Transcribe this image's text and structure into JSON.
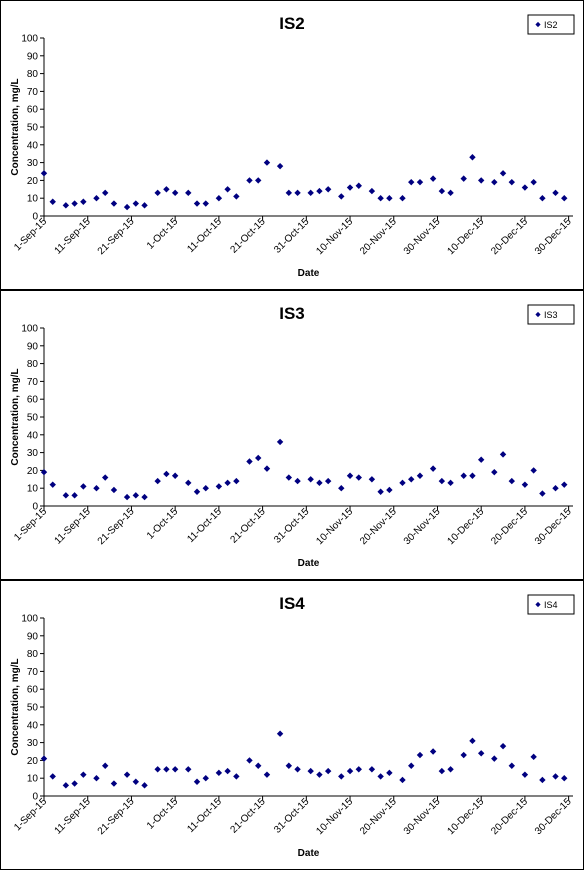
{
  "chart_data": [
    {
      "type": "scatter",
      "title": "IS2",
      "xlabel": "Date",
      "ylabel": "Concentration, mg/L",
      "ylim": [
        0,
        100
      ],
      "yticks": [
        0,
        10,
        20,
        30,
        40,
        50,
        60,
        70,
        80,
        90,
        100
      ],
      "xlim": [
        "2015-09-01",
        "2015-12-31"
      ],
      "xticks": [
        "1-Sep-15",
        "11-Sep-15",
        "21-Sep-15",
        "1-Oct-15",
        "11-Oct-15",
        "21-Oct-15",
        "31-Oct-15",
        "10-Nov-15",
        "20-Nov-15",
        "30-Nov-15",
        "10-Dec-15",
        "20-Dec-15",
        "30-Dec-15"
      ],
      "legend": "top-right",
      "grid": false,
      "marker_color": "#000080",
      "series": [
        {
          "name": "IS2",
          "x": [
            "2015-09-01",
            "2015-09-03",
            "2015-09-06",
            "2015-09-08",
            "2015-09-10",
            "2015-09-13",
            "2015-09-15",
            "2015-09-17",
            "2015-09-20",
            "2015-09-22",
            "2015-09-24",
            "2015-09-27",
            "2015-09-29",
            "2015-10-01",
            "2015-10-04",
            "2015-10-06",
            "2015-10-08",
            "2015-10-11",
            "2015-10-13",
            "2015-10-15",
            "2015-10-18",
            "2015-10-20",
            "2015-10-22",
            "2015-10-25",
            "2015-10-27",
            "2015-10-29",
            "2015-11-01",
            "2015-11-03",
            "2015-11-05",
            "2015-11-08",
            "2015-11-10",
            "2015-11-12",
            "2015-11-15",
            "2015-11-17",
            "2015-11-19",
            "2015-11-22",
            "2015-11-24",
            "2015-11-26",
            "2015-11-29",
            "2015-12-01",
            "2015-12-03",
            "2015-12-06",
            "2015-12-08",
            "2015-12-10",
            "2015-12-13",
            "2015-12-15",
            "2015-12-17",
            "2015-12-20",
            "2015-12-22",
            "2015-12-24",
            "2015-12-27",
            "2015-12-29"
          ],
          "y": [
            24,
            8,
            6,
            7,
            8,
            10,
            13,
            7,
            5,
            7,
            6,
            13,
            15,
            13,
            13,
            7,
            7,
            10,
            15,
            11,
            20,
            20,
            30,
            28,
            13,
            13,
            13,
            14,
            15,
            11,
            16,
            17,
            14,
            10,
            10,
            10,
            19,
            19,
            21,
            14,
            13,
            21,
            33,
            20,
            19,
            24,
            19,
            16,
            19,
            10,
            13,
            10
          ]
        }
      ]
    },
    {
      "type": "scatter",
      "title": "IS3",
      "xlabel": "Date",
      "ylabel": "Concentration, mg/L",
      "ylim": [
        0,
        100
      ],
      "yticks": [
        0,
        10,
        20,
        30,
        40,
        50,
        60,
        70,
        80,
        90,
        100
      ],
      "xlim": [
        "2015-09-01",
        "2015-12-31"
      ],
      "xticks": [
        "1-Sep-15",
        "11-Sep-15",
        "21-Sep-15",
        "1-Oct-15",
        "11-Oct-15",
        "21-Oct-15",
        "31-Oct-15",
        "10-Nov-15",
        "20-Nov-15",
        "30-Nov-15",
        "10-Dec-15",
        "20-Dec-15",
        "30-Dec-15"
      ],
      "legend": "top-right",
      "grid": false,
      "marker_color": "#000080",
      "series": [
        {
          "name": "IS3",
          "x": [
            "2015-09-01",
            "2015-09-03",
            "2015-09-06",
            "2015-09-08",
            "2015-09-10",
            "2015-09-13",
            "2015-09-15",
            "2015-09-17",
            "2015-09-20",
            "2015-09-22",
            "2015-09-24",
            "2015-09-27",
            "2015-09-29",
            "2015-10-01",
            "2015-10-04",
            "2015-10-06",
            "2015-10-08",
            "2015-10-11",
            "2015-10-13",
            "2015-10-15",
            "2015-10-18",
            "2015-10-20",
            "2015-10-22",
            "2015-10-25",
            "2015-10-27",
            "2015-10-29",
            "2015-11-01",
            "2015-11-03",
            "2015-11-05",
            "2015-11-08",
            "2015-11-10",
            "2015-11-12",
            "2015-11-15",
            "2015-11-17",
            "2015-11-19",
            "2015-11-22",
            "2015-11-24",
            "2015-11-26",
            "2015-11-29",
            "2015-12-01",
            "2015-12-03",
            "2015-12-06",
            "2015-12-08",
            "2015-12-10",
            "2015-12-13",
            "2015-12-15",
            "2015-12-17",
            "2015-12-20",
            "2015-12-22",
            "2015-12-24",
            "2015-12-27",
            "2015-12-29"
          ],
          "y": [
            19,
            12,
            6,
            6,
            11,
            10,
            16,
            9,
            5,
            6,
            5,
            14,
            18,
            17,
            13,
            8,
            10,
            11,
            13,
            14,
            25,
            27,
            21,
            36,
            16,
            14,
            15,
            13,
            14,
            10,
            17,
            16,
            15,
            8,
            9,
            13,
            15,
            17,
            21,
            14,
            13,
            17,
            17,
            26,
            19,
            29,
            14,
            12,
            20,
            7,
            10,
            12
          ]
        }
      ]
    },
    {
      "type": "scatter",
      "title": "IS4",
      "xlabel": "Date",
      "ylabel": "Concentration, mg/L",
      "ylim": [
        0,
        100
      ],
      "yticks": [
        0,
        10,
        20,
        30,
        40,
        50,
        60,
        70,
        80,
        90,
        100
      ],
      "xlim": [
        "2015-09-01",
        "2015-12-31"
      ],
      "xticks": [
        "1-Sep-15",
        "11-Sep-15",
        "21-Sep-15",
        "1-Oct-15",
        "11-Oct-15",
        "21-Oct-15",
        "31-Oct-15",
        "10-Nov-15",
        "20-Nov-15",
        "30-Nov-15",
        "10-Dec-15",
        "20-Dec-15",
        "30-Dec-15"
      ],
      "legend": "top-right",
      "grid": false,
      "marker_color": "#000080",
      "series": [
        {
          "name": "IS4",
          "x": [
            "2015-09-01",
            "2015-09-03",
            "2015-09-06",
            "2015-09-08",
            "2015-09-10",
            "2015-09-13",
            "2015-09-15",
            "2015-09-17",
            "2015-09-20",
            "2015-09-22",
            "2015-09-24",
            "2015-09-27",
            "2015-09-29",
            "2015-10-01",
            "2015-10-04",
            "2015-10-06",
            "2015-10-08",
            "2015-10-11",
            "2015-10-13",
            "2015-10-15",
            "2015-10-18",
            "2015-10-20",
            "2015-10-22",
            "2015-10-25",
            "2015-10-27",
            "2015-10-29",
            "2015-11-01",
            "2015-11-03",
            "2015-11-05",
            "2015-11-08",
            "2015-11-10",
            "2015-11-12",
            "2015-11-15",
            "2015-11-17",
            "2015-11-19",
            "2015-11-22",
            "2015-11-24",
            "2015-11-26",
            "2015-11-29",
            "2015-12-01",
            "2015-12-03",
            "2015-12-06",
            "2015-12-08",
            "2015-12-10",
            "2015-12-13",
            "2015-12-15",
            "2015-12-17",
            "2015-12-20",
            "2015-12-22",
            "2015-12-24",
            "2015-12-27",
            "2015-12-29"
          ],
          "y": [
            21,
            11,
            6,
            7,
            12,
            10,
            17,
            7,
            12,
            8,
            6,
            15,
            15,
            15,
            15,
            8,
            10,
            13,
            14,
            11,
            20,
            17,
            12,
            35,
            17,
            15,
            14,
            12,
            14,
            11,
            14,
            15,
            15,
            11,
            13,
            9,
            17,
            23,
            25,
            14,
            15,
            23,
            31,
            24,
            21,
            28,
            17,
            12,
            22,
            9,
            11,
            10
          ]
        }
      ]
    }
  ]
}
